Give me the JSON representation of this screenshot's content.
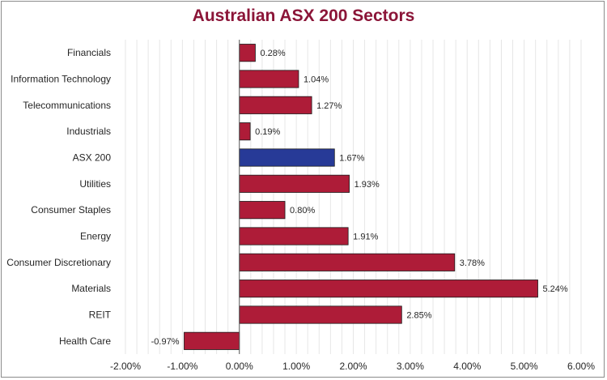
{
  "chart_data": {
    "type": "bar",
    "orientation": "horizontal",
    "title": "Australian ASX 200 Sectors",
    "categories": [
      "Financials",
      "Information Technology",
      "Telecommunications",
      "Industrials",
      "ASX 200",
      "Utilities",
      "Consumer Staples",
      "Energy",
      "Consumer Discretionary",
      "Materials",
      "REIT",
      "Health Care"
    ],
    "values": [
      0.28,
      1.04,
      1.27,
      0.19,
      1.67,
      1.93,
      0.8,
      1.91,
      3.78,
      5.24,
      2.85,
      -0.97
    ],
    "data_labels": [
      "0.28%",
      "1.04%",
      "1.27%",
      "0.19%",
      "1.67%",
      "1.93%",
      "0.80%",
      "1.91%",
      "3.78%",
      "5.24%",
      "2.85%",
      "-0.97%"
    ],
    "xlim": [
      -2,
      6
    ],
    "xticks": [
      -2,
      -1,
      0,
      1,
      2,
      3,
      4,
      5,
      6
    ],
    "xtick_labels": [
      "-2.00%",
      "-1.00%",
      "0.00%",
      "1.00%",
      "2.00%",
      "3.00%",
      "4.00%",
      "5.00%",
      "6.00%"
    ],
    "unit": "%",
    "grid": "vertical minor gridlines",
    "legend": "none",
    "colors": {
      "bar": "#ae1c38",
      "highlight_bar": "#273a97",
      "highlight_category": "ASX 200",
      "title": "#8b1538",
      "grid": "#e6e6e6"
    }
  }
}
